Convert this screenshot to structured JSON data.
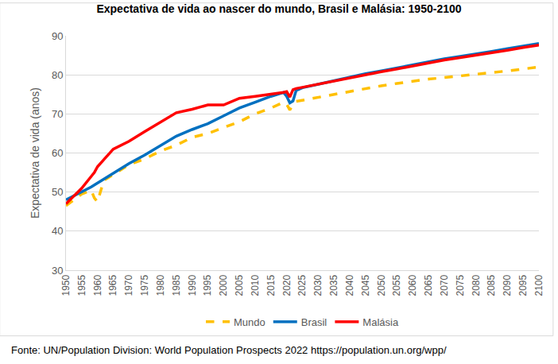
{
  "chart_data": {
    "type": "line",
    "title": "Expectativa de vida ao nascer do mundo, Brasil e Malásia: 1950-2100",
    "y_label": "Expectativa de vida (anos)",
    "annotations": [
      "Fonte: UN/Population Division: World Population Prospects 2022 https://population.un.org/wpp/"
    ],
    "x": [
      1950,
      1955,
      1958,
      1959,
      1960,
      1961,
      1962,
      1965,
      1970,
      1975,
      1980,
      1985,
      1990,
      1995,
      2000,
      2005,
      2010,
      2015,
      2019,
      2020,
      2021,
      2022,
      2023,
      2025,
      2030,
      2035,
      2040,
      2045,
      2050,
      2055,
      2060,
      2065,
      2070,
      2075,
      2080,
      2085,
      2090,
      2095,
      2100
    ],
    "series": [
      {
        "name": "Mundo",
        "color": "#FFC000",
        "line_style": "dash",
        "values": [
          46.5,
          49.5,
          50.5,
          48.5,
          47.5,
          50.5,
          53,
          54.5,
          57,
          58.5,
          60.5,
          62,
          64,
          65,
          66.5,
          68,
          70,
          71.5,
          73,
          72.5,
          71,
          72.5,
          73.2,
          73.5,
          74.3,
          75,
          75.8,
          76.5,
          77.2,
          77.8,
          78.4,
          78.9,
          79.3,
          79.7,
          80.2,
          80.6,
          81,
          81.5,
          82
        ]
      },
      {
        "name": "Brasil",
        "color": "#0070C0",
        "line_style": "solid",
        "values": [
          48,
          50,
          51.3,
          51.8,
          52.3,
          53,
          53.5,
          55,
          57.3,
          59.5,
          62,
          64.3,
          66,
          67.5,
          69.5,
          71.5,
          73,
          74.5,
          75.5,
          74.5,
          72.8,
          73.3,
          76,
          76.7,
          77.6,
          78.5,
          79.4,
          80.3,
          81,
          81.8,
          82.6,
          83.4,
          84.1,
          84.7,
          85.3,
          86,
          86.7,
          87.4,
          88
        ]
      },
      {
        "name": "Malásia",
        "color": "#FF0000",
        "line_style": "solid",
        "values": [
          47,
          51,
          54,
          55,
          56.5,
          57.3,
          58.3,
          61,
          63,
          65.5,
          68,
          70.3,
          71.2,
          72.3,
          72.3,
          74,
          74.5,
          75,
          75.5,
          75.7,
          74.3,
          76.2,
          76.5,
          76.8,
          77.6,
          78.5,
          79.3,
          80,
          80.8,
          81.5,
          82.3,
          83,
          83.8,
          84.4,
          85,
          85.7,
          86.3,
          87,
          87.6
        ]
      }
    ],
    "xlim": [
      1950,
      2100
    ],
    "xticks": [
      1950,
      1955,
      1960,
      1965,
      1970,
      1975,
      1980,
      1985,
      1990,
      1995,
      2000,
      2005,
      2010,
      2015,
      2020,
      2025,
      2030,
      2035,
      2040,
      2045,
      2050,
      2055,
      2060,
      2065,
      2070,
      2075,
      2080,
      2085,
      2090,
      2095,
      2100
    ],
    "ylim": [
      30,
      90
    ],
    "yticks": [
      30,
      40,
      50,
      60,
      70,
      80,
      90
    ],
    "grid": true,
    "legend": "bottom"
  }
}
